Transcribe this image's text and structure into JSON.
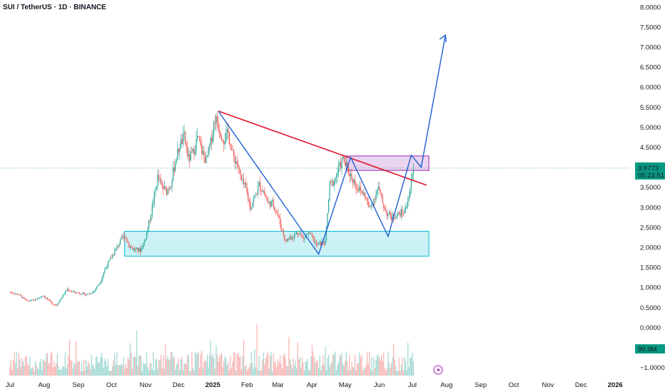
{
  "header": {
    "title": "SUI / TetherUS · 1D · BINANCE"
  },
  "chart_data": {
    "type": "candlestick",
    "title": "SUI / TetherUS · 1D · BINANCE",
    "y_ticks": [
      "8.0000",
      "7.5000",
      "7.0000",
      "6.5000",
      "6.0000",
      "5.5000",
      "5.0000",
      "4.5000",
      "3.5000",
      "3.0000",
      "2.5000",
      "2.0000",
      "1.5000",
      "1.0000",
      "0.5000",
      "0.0000",
      "−1.0000"
    ],
    "ylim": [
      -1.0,
      8.0
    ],
    "x_ticks": [
      "Jul",
      "Aug",
      "Sep",
      "Oct",
      "Nov",
      "Dec",
      "2025",
      "Feb",
      "Mar",
      "Apr",
      "May",
      "Jun",
      "Jul",
      "Aug",
      "Sep",
      "Oct",
      "Nov",
      "Dec",
      "2026"
    ],
    "x_tick_days": [
      0,
      31,
      62,
      92,
      123,
      153,
      184,
      215,
      243,
      274,
      304,
      335,
      365,
      396,
      427,
      457,
      488,
      518,
      549
    ],
    "price_path": [
      [
        0,
        0.88
      ],
      [
        8,
        0.82
      ],
      [
        15,
        0.66
      ],
      [
        22,
        0.68
      ],
      [
        30,
        0.8
      ],
      [
        38,
        0.6
      ],
      [
        42,
        0.55
      ],
      [
        46,
        0.72
      ],
      [
        52,
        0.95
      ],
      [
        58,
        0.88
      ],
      [
        64,
        0.85
      ],
      [
        70,
        0.82
      ],
      [
        76,
        0.9
      ],
      [
        82,
        1.15
      ],
      [
        86,
        1.45
      ],
      [
        92,
        1.75
      ],
      [
        96,
        1.95
      ],
      [
        100,
        2.15
      ],
      [
        104,
        2.3
      ],
      [
        108,
        2.05
      ],
      [
        112,
        1.95
      ],
      [
        118,
        1.92
      ],
      [
        122,
        2.15
      ],
      [
        126,
        2.6
      ],
      [
        130,
        3.15
      ],
      [
        134,
        3.75
      ],
      [
        138,
        3.5
      ],
      [
        142,
        3.4
      ],
      [
        146,
        3.6
      ],
      [
        150,
        4.15
      ],
      [
        154,
        4.55
      ],
      [
        158,
        4.75
      ],
      [
        162,
        4.2
      ],
      [
        166,
        4.35
      ],
      [
        170,
        4.75
      ],
      [
        174,
        4.4
      ],
      [
        178,
        4.15
      ],
      [
        182,
        4.6
      ],
      [
        186,
        5.25
      ],
      [
        190,
        4.95
      ],
      [
        194,
        4.7
      ],
      [
        198,
        4.85
      ],
      [
        202,
        4.3
      ],
      [
        206,
        4.1
      ],
      [
        210,
        3.65
      ],
      [
        214,
        3.45
      ],
      [
        218,
        3.0
      ],
      [
        222,
        3.25
      ],
      [
        226,
        3.55
      ],
      [
        230,
        3.4
      ],
      [
        234,
        3.1
      ],
      [
        238,
        3.1
      ],
      [
        242,
        2.9
      ],
      [
        246,
        2.5
      ],
      [
        250,
        2.15
      ],
      [
        254,
        2.25
      ],
      [
        258,
        2.3
      ],
      [
        262,
        2.4
      ],
      [
        266,
        2.2
      ],
      [
        270,
        2.35
      ],
      [
        274,
        2.25
      ],
      [
        278,
        2.05
      ],
      [
        282,
        2.1
      ],
      [
        286,
        2.12
      ],
      [
        290,
        3.55
      ],
      [
        294,
        3.65
      ],
      [
        298,
        3.95
      ],
      [
        302,
        4.2
      ],
      [
        306,
        3.95
      ],
      [
        310,
        3.75
      ],
      [
        314,
        3.55
      ],
      [
        318,
        3.4
      ],
      [
        322,
        3.3
      ],
      [
        326,
        2.95
      ],
      [
        330,
        3.2
      ],
      [
        334,
        3.5
      ],
      [
        338,
        3.1
      ],
      [
        342,
        2.85
      ],
      [
        346,
        2.75
      ],
      [
        350,
        2.8
      ],
      [
        354,
        2.85
      ],
      [
        358,
        2.9
      ],
      [
        362,
        3.3
      ],
      [
        366,
        3.98
      ]
    ],
    "volume_label": "90.9M",
    "last_price": "3.9773",
    "countdown": "05:23:51",
    "annotations": {
      "resistance_line": {
        "color": "#e0152b",
        "from": [
          189,
          5.4
        ],
        "to": [
          378,
          3.55
        ]
      },
      "pattern_line": {
        "color": "#1c5fd1",
        "points": [
          [
            189,
            5.4
          ],
          [
            280,
            1.83
          ],
          [
            309,
            4.25
          ],
          [
            343,
            2.27
          ],
          [
            364,
            4.3
          ],
          [
            373,
            4.0
          ],
          [
            395,
            7.3
          ]
        ]
      },
      "support_zone": {
        "color": "#00bcd4",
        "x": [
          104,
          380
        ],
        "y": [
          1.78,
          2.4
        ]
      },
      "resistance_zone": {
        "color": "#9c27b0",
        "x": [
          305,
          380
        ],
        "y": [
          3.92,
          4.28
        ]
      }
    },
    "colors": {
      "up": "#26a69a",
      "down": "#ef5350",
      "price_label": "#089981"
    },
    "grid": false
  }
}
